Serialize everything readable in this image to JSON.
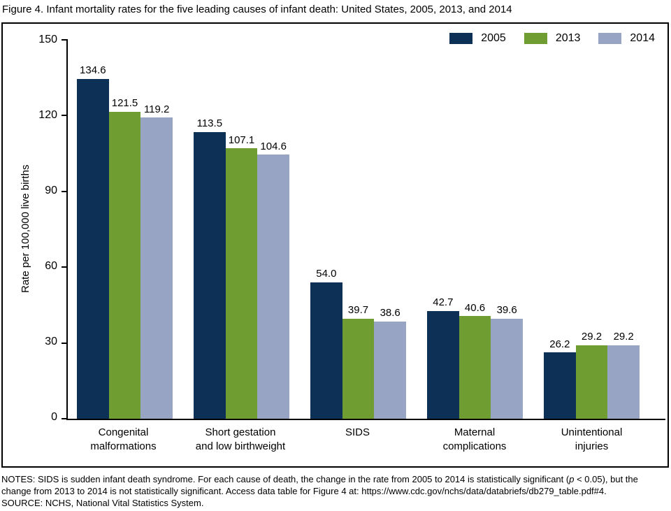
{
  "chart_data": {
    "type": "bar",
    "title": "Figure 4. Infant mortality rates for the five leading causes of infant death: United States, 2005, 2013, and 2014",
    "categories": [
      "Congenital\nmalformations",
      "Short gestation\nand low birthweight",
      "SIDS",
      "Maternal\ncomplications",
      "Unintentional\ninjuries"
    ],
    "series": [
      {
        "name": "2005",
        "color": "#0d3156",
        "values": [
          134.6,
          113.5,
          54.0,
          42.7,
          26.2
        ]
      },
      {
        "name": "2013",
        "color": "#6f9d32",
        "values": [
          121.5,
          107.1,
          39.7,
          40.6,
          29.2
        ]
      },
      {
        "name": "2014",
        "color": "#98a4c3",
        "values": [
          119.2,
          104.6,
          38.6,
          39.6,
          29.2
        ]
      }
    ],
    "xlabel": "",
    "ylabel": "Rate per 100,000 live births",
    "ylim": [
      0,
      150
    ],
    "yticks": [
      0,
      30,
      60,
      90,
      120,
      150
    ],
    "grid": false,
    "legend_position": "top-right",
    "value_labels_decimals": 1
  },
  "colors": {
    "axis": "#000000",
    "text": "#000000",
    "panel_border": "#000000",
    "background": "#ffffff"
  },
  "notes": {
    "segments": [
      {
        "text": "NOTES: SIDS is sudden infant death syndrome. For each cause of death, the change in the rate from 2005 to 2014 is statistically significant (",
        "italic": false
      },
      {
        "text": "p",
        "italic": true
      },
      {
        "text": " < 0.05), but the change from 2013 to 2014 is not statistically significant. Access data table for Figure 4 at: https://www.cdc.gov/nchs/data/databriefs/db279_table.pdf#4.",
        "italic": false
      }
    ],
    "source": "SOURCE: NCHS, National Vital Statistics System."
  }
}
